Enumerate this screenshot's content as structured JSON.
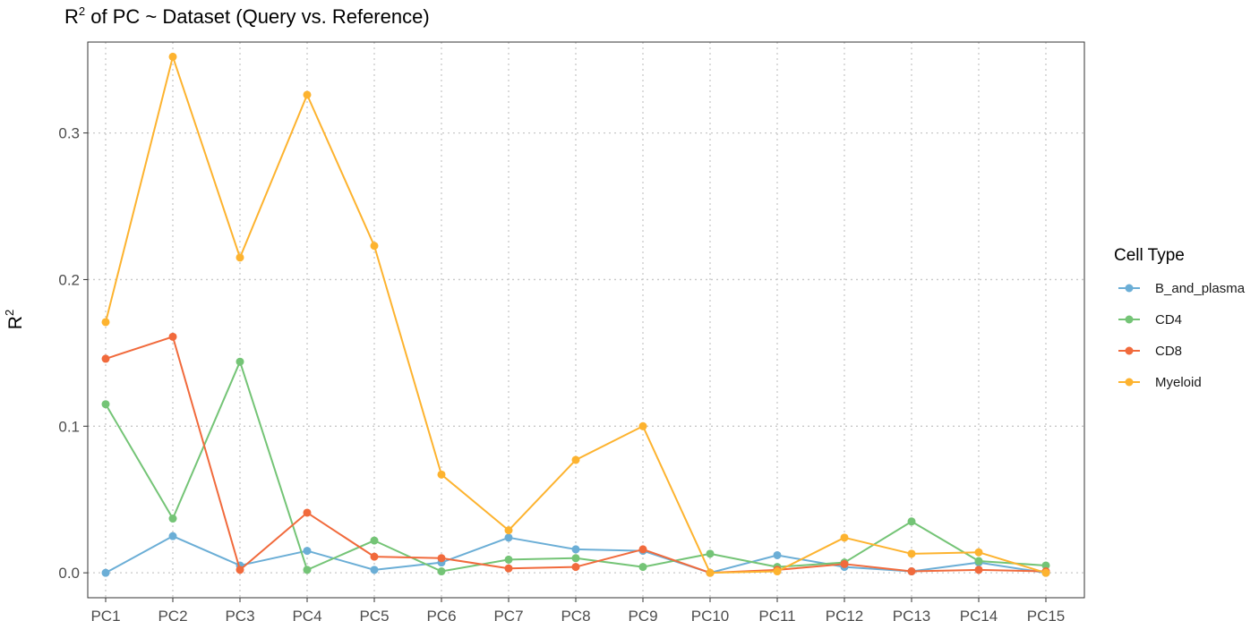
{
  "chart_data": {
    "type": "line",
    "title": {
      "main": "R",
      "superscript": "2",
      "rest": " of PC ~  Dataset (Query vs. Reference)"
    },
    "xlabel": "",
    "ylabel": {
      "main": "R",
      "superscript": "2"
    },
    "categories": [
      "PC1",
      "PC2",
      "PC3",
      "PC4",
      "PC5",
      "PC6",
      "PC7",
      "PC8",
      "PC9",
      "PC10",
      "PC11",
      "PC12",
      "PC13",
      "PC14",
      "PC15"
    ],
    "ylim": [
      -0.017,
      0.362
    ],
    "yticks": [
      0.0,
      0.1,
      0.2,
      0.3
    ],
    "ytick_labels": [
      "0.0",
      "0.1",
      "0.2",
      "0.3"
    ],
    "grid": true,
    "legend": {
      "title": "Cell Type",
      "position": "right"
    },
    "series": [
      {
        "name": "B_and_plasma",
        "color": "#6baed6",
        "values": [
          0.0,
          0.025,
          0.005,
          0.015,
          0.002,
          0.007,
          0.024,
          0.016,
          0.015,
          0.0,
          0.012,
          0.004,
          0.001,
          0.007,
          0.0
        ]
      },
      {
        "name": "CD4",
        "color": "#74c476",
        "values": [
          0.115,
          0.037,
          0.144,
          0.002,
          0.022,
          0.001,
          0.009,
          0.01,
          0.004,
          0.013,
          0.004,
          0.007,
          0.035,
          0.008,
          0.005
        ]
      },
      {
        "name": "CD8",
        "color": "#f16a3c",
        "values": [
          0.146,
          0.161,
          0.002,
          0.041,
          0.011,
          0.01,
          0.003,
          0.004,
          0.016,
          0.0,
          0.002,
          0.006,
          0.001,
          0.002,
          0.001
        ]
      },
      {
        "name": "Myeloid",
        "color": "#fdb32f",
        "values": [
          0.171,
          0.352,
          0.215,
          0.326,
          0.223,
          0.067,
          0.029,
          0.077,
          0.1,
          0.0,
          0.001,
          0.024,
          0.013,
          0.014,
          0.0
        ]
      }
    ]
  }
}
